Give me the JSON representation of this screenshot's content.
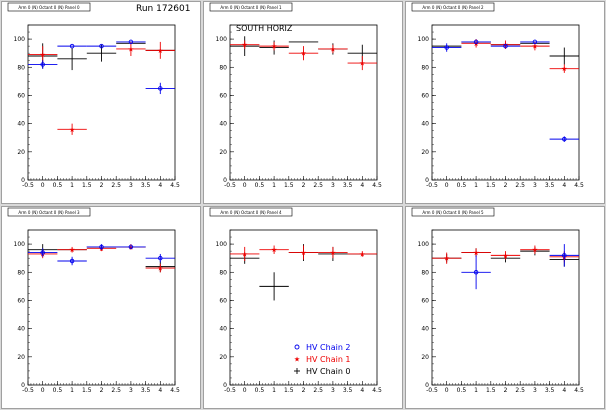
{
  "page": {
    "run_label": "Run 172601",
    "south_label": "SOUTH HORIZ",
    "legend": [
      {
        "label": "HV Chain 2",
        "color": "#0000ee",
        "marker": "open-circle"
      },
      {
        "label": "HV Chain 1",
        "color": "#ee0000",
        "marker": "star"
      },
      {
        "label": "HV Chain 0",
        "color": "#000000",
        "marker": "cross"
      }
    ]
  },
  "chart_data": [
    {
      "type": "scatter",
      "title": "Arm 0 (N) Octant 0 (N) Panel 0",
      "xlim": [
        -0.5,
        4.5
      ],
      "ylim": [
        0,
        110
      ],
      "x_ticks": [
        "-0.5",
        "0",
        "0.5",
        "1",
        "1.5",
        "2",
        "2.5",
        "3",
        "3.5",
        "4",
        "4.5"
      ],
      "y_ticks": [
        "0",
        "20",
        "40",
        "60",
        "80",
        "100"
      ],
      "series": [
        {
          "color": "#000000",
          "points": [
            [
              0,
              88,
              9
            ],
            [
              1,
              86,
              8
            ],
            [
              2,
              90,
              6
            ],
            [
              3,
              97,
              0
            ],
            [
              4,
              92,
              0
            ]
          ]
        },
        {
          "color": "#ee0000",
          "points": [
            [
              0,
              89,
              6
            ],
            [
              1,
              36,
              4
            ],
            [
              3,
              93,
              5
            ],
            [
              4,
              92,
              6
            ]
          ]
        },
        {
          "color": "#0000ee",
          "points": [
            [
              0,
              82,
              3
            ],
            [
              1,
              95,
              0
            ],
            [
              2,
              95,
              0
            ],
            [
              3,
              98,
              0
            ],
            [
              4,
              65,
              4
            ]
          ]
        }
      ]
    },
    {
      "type": "scatter",
      "title": "Arm 0 (N) Octant 0 (N) Panel 1",
      "xlim": [
        -0.5,
        4.5
      ],
      "ylim": [
        0,
        110
      ],
      "x_ticks": [
        "-0.5",
        "0",
        "0.5",
        "1",
        "1.5",
        "2",
        "2.5",
        "3",
        "3.5",
        "4",
        "4.5"
      ],
      "y_ticks": [
        "0",
        "20",
        "40",
        "60",
        "80",
        "100"
      ],
      "series": [
        {
          "color": "#000000",
          "points": [
            [
              0,
              95,
              7
            ],
            [
              1,
              94,
              5
            ],
            [
              2,
              98,
              0
            ],
            [
              3,
              93,
              4
            ],
            [
              4,
              90,
              6
            ]
          ]
        },
        {
          "color": "#ee0000",
          "points": [
            [
              0,
              96,
              3
            ],
            [
              1,
              95,
              3
            ],
            [
              2,
              90,
              5
            ],
            [
              3,
              93,
              3
            ],
            [
              4,
              83,
              5
            ]
          ]
        }
      ]
    },
    {
      "type": "scatter",
      "title": "Arm 0 (N) Octant 0 (N) Panel 2",
      "xlim": [
        -0.5,
        4.5
      ],
      "ylim": [
        0,
        110
      ],
      "x_ticks": [
        "-0.5",
        "0",
        "0.5",
        "1",
        "1.5",
        "2",
        "2.5",
        "3",
        "3.5",
        "4",
        "4.5"
      ],
      "y_ticks": [
        "0",
        "20",
        "40",
        "60",
        "80",
        "100"
      ],
      "series": [
        {
          "color": "#000000",
          "points": [
            [
              0,
              95,
              0
            ],
            [
              1,
              98,
              0
            ],
            [
              2,
              96,
              0
            ],
            [
              3,
              97,
              0
            ],
            [
              4,
              88,
              6
            ]
          ]
        },
        {
          "color": "#ee0000",
          "points": [
            [
              1,
              97,
              3
            ],
            [
              2,
              96,
              3
            ],
            [
              3,
              95,
              3
            ],
            [
              4,
              79,
              3
            ]
          ]
        },
        {
          "color": "#0000ee",
          "points": [
            [
              0,
              94,
              3
            ],
            [
              1,
              98,
              0
            ],
            [
              2,
              95,
              0
            ],
            [
              3,
              98,
              0
            ],
            [
              4,
              29,
              2
            ]
          ]
        }
      ]
    },
    {
      "type": "scatter",
      "title": "Arm 0 (N) Octant 0 (N) Panel 3",
      "xlim": [
        -0.5,
        4.5
      ],
      "ylim": [
        0,
        110
      ],
      "x_ticks": [
        "-0.5",
        "0",
        "0.5",
        "1",
        "1.5",
        "2",
        "2.5",
        "3",
        "3.5",
        "4",
        "4.5"
      ],
      "y_ticks": [
        "0",
        "20",
        "40",
        "60",
        "80",
        "100"
      ],
      "series": [
        {
          "color": "#000000",
          "points": [
            [
              0,
              96,
              4
            ],
            [
              1,
              96,
              0
            ],
            [
              2,
              98,
              0
            ],
            [
              3,
              98,
              0
            ],
            [
              4,
              84,
              4
            ]
          ]
        },
        {
          "color": "#ee0000",
          "points": [
            [
              0,
              93,
              3
            ],
            [
              1,
              96,
              2
            ],
            [
              2,
              97,
              2
            ],
            [
              3,
              98,
              2
            ],
            [
              4,
              83,
              3
            ]
          ]
        },
        {
          "color": "#0000ee",
          "points": [
            [
              0,
              94,
              3
            ],
            [
              1,
              88,
              3
            ],
            [
              2,
              98,
              2
            ],
            [
              3,
              98,
              0
            ],
            [
              4,
              90,
              3
            ]
          ]
        }
      ]
    },
    {
      "type": "scatter",
      "title": "Arm 0 (N) Octant 0 (N) Panel 4",
      "xlim": [
        -0.5,
        4.5
      ],
      "ylim": [
        0,
        110
      ],
      "x_ticks": [
        "-0.5",
        "0",
        "0.5",
        "1",
        "1.5",
        "2",
        "2.5",
        "3",
        "3.5",
        "4",
        "4.5"
      ],
      "y_ticks": [
        "0",
        "20",
        "40",
        "60",
        "80",
        "100"
      ],
      "series": [
        {
          "color": "#000000",
          "points": [
            [
              0,
              90,
              4
            ],
            [
              1,
              70,
              10
            ],
            [
              2,
              94,
              6
            ],
            [
              3,
              93,
              5
            ],
            [
              4,
              93,
              0
            ]
          ]
        },
        {
          "color": "#ee0000",
          "points": [
            [
              0,
              93,
              5
            ],
            [
              1,
              96,
              3
            ],
            [
              2,
              94,
              5
            ],
            [
              3,
              94,
              4
            ],
            [
              4,
              93,
              2
            ]
          ]
        }
      ]
    },
    {
      "type": "scatter",
      "title": "Arm 0 (N) Octant 0 (N) Panel 5",
      "xlim": [
        -0.5,
        4.5
      ],
      "ylim": [
        0,
        110
      ],
      "x_ticks": [
        "-0.5",
        "0",
        "0.5",
        "1",
        "1.5",
        "2",
        "2.5",
        "3",
        "3.5",
        "4",
        "4.5"
      ],
      "y_ticks": [
        "0",
        "20",
        "40",
        "60",
        "80",
        "100"
      ],
      "series": [
        {
          "color": "#000000",
          "points": [
            [
              0,
              90,
              3
            ],
            [
              1,
              94,
              3
            ],
            [
              2,
              90,
              3
            ],
            [
              3,
              95,
              3
            ],
            [
              4,
              89,
              5
            ]
          ]
        },
        {
          "color": "#ee0000",
          "points": [
            [
              0,
              90,
              4
            ],
            [
              1,
              94,
              3
            ],
            [
              2,
              92,
              3
            ],
            [
              3,
              96,
              3
            ],
            [
              4,
              91,
              4
            ]
          ]
        },
        {
          "color": "#0000ee",
          "points": [
            [
              1,
              80,
              12
            ],
            [
              4,
              92,
              8
            ]
          ]
        }
      ]
    }
  ]
}
